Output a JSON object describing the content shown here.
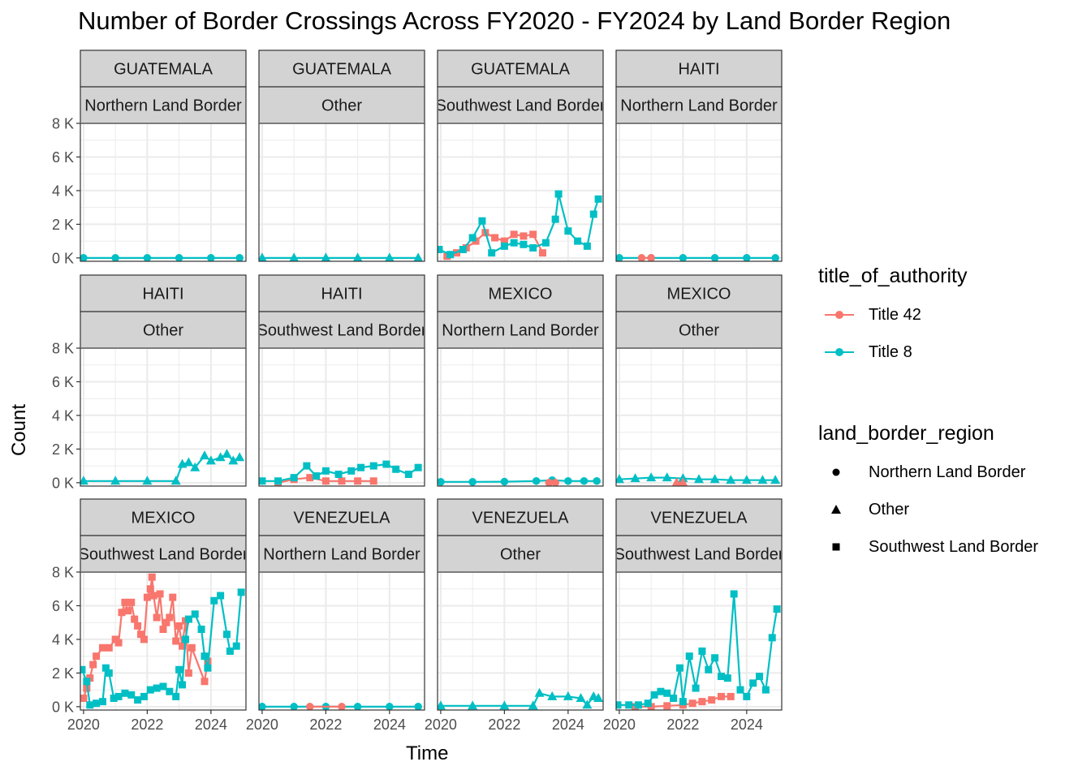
{
  "colors": {
    "title42": "#F8766D",
    "title8": "#00BFC4",
    "strip_bg": "#D3D3D3",
    "grid": "#EBEBEB",
    "border": "#333333"
  },
  "chart_data": {
    "type": "line",
    "title": "Number of Border Crossings Across FY2020 - FY2024 by Land Border Region",
    "xlabel": "Time",
    "ylabel": "Count",
    "xlim": [
      2019.9,
      2025.1
    ],
    "ylim": [
      -200,
      8000
    ],
    "x_ticks": [
      2020,
      2022,
      2024
    ],
    "x_tick_labels": [
      "2020",
      "2022",
      "2024"
    ],
    "y_ticks": [
      0,
      2000,
      4000,
      6000,
      8000
    ],
    "y_tick_labels": [
      "0 K",
      "2 K",
      "4 K",
      "6 K",
      "8 K"
    ],
    "grid": true,
    "legend": {
      "position": "right",
      "color_title": "title_of_authority",
      "color_entries": [
        "Title 42",
        "Title 8"
      ],
      "shape_title": "land_border_region",
      "shape_entries": [
        "Northern Land Border",
        "Other",
        "Southwest Land Border"
      ]
    },
    "panels": [
      {
        "country": "GUATEMALA",
        "region": "Northern Land Border",
        "shape": "circle",
        "series": [
          {
            "name": "Title 8",
            "x": [
              2020.0,
              2021.0,
              2022.0,
              2023.0,
              2024.0,
              2024.9
            ],
            "y": [
              0,
              0,
              0,
              0,
              0,
              0
            ]
          }
        ]
      },
      {
        "country": "GUATEMALA",
        "region": "Other",
        "shape": "triangle",
        "series": [
          {
            "name": "Title 8",
            "x": [
              2020.0,
              2021.0,
              2022.0,
              2023.0,
              2024.0,
              2024.9
            ],
            "y": [
              0,
              0,
              0,
              0,
              0,
              0
            ]
          }
        ]
      },
      {
        "country": "GUATEMALA",
        "region": "Southwest Land Border",
        "shape": "square",
        "series": [
          {
            "name": "Title 42",
            "x": [
              2020.2,
              2020.5,
              2020.8,
              2021.1,
              2021.4,
              2021.7,
              2022.0,
              2022.3,
              2022.6,
              2022.9,
              2023.2
            ],
            "y": [
              100,
              300,
              600,
              1000,
              1500,
              1200,
              1000,
              1400,
              1300,
              1400,
              300
            ]
          },
          {
            "name": "Title 8",
            "x": [
              2019.95,
              2020.3,
              2020.7,
              2021.0,
              2021.3,
              2021.6,
              2022.0,
              2022.3,
              2022.6,
              2022.9,
              2023.3,
              2023.6,
              2023.7,
              2024.0,
              2024.3,
              2024.6,
              2024.8,
              2024.95
            ],
            "y": [
              500,
              200,
              500,
              1200,
              2200,
              300,
              700,
              900,
              800,
              600,
              900,
              2300,
              3800,
              1600,
              1000,
              700,
              2600,
              3500
            ]
          }
        ]
      },
      {
        "country": "HAITI",
        "region": "Northern Land Border",
        "shape": "circle",
        "series": [
          {
            "name": "Title 8",
            "x": [
              2020.0,
              2021.0,
              2022.0,
              2023.0,
              2024.0,
              2024.9
            ],
            "y": [
              0,
              0,
              0,
              0,
              0,
              0
            ]
          },
          {
            "name": "Title 42",
            "x": [
              2020.7,
              2021.0
            ],
            "y": [
              0,
              0
            ]
          }
        ]
      },
      {
        "country": "HAITI",
        "region": "Other",
        "shape": "triangle",
        "series": [
          {
            "name": "Title 8",
            "x": [
              2020.0,
              2021.0,
              2022.0,
              2022.9,
              2023.1,
              2023.3,
              2023.5,
              2023.8,
              2024.0,
              2024.3,
              2024.5,
              2024.7,
              2024.9
            ],
            "y": [
              100,
              100,
              100,
              100,
              1100,
              1200,
              900,
              1600,
              1300,
              1500,
              1700,
              1300,
              1500
            ]
          }
        ]
      },
      {
        "country": "HAITI",
        "region": "Southwest Land Border",
        "shape": "square",
        "series": [
          {
            "name": "Title 42",
            "x": [
              2020.5,
              2021.0,
              2021.5,
              2022.0,
              2022.5,
              2023.0,
              2023.5
            ],
            "y": [
              0,
              200,
              300,
              100,
              100,
              100,
              100
            ]
          },
          {
            "name": "Title 8",
            "x": [
              2020.0,
              2020.5,
              2021.0,
              2021.4,
              2021.7,
              2022.0,
              2022.4,
              2022.8,
              2023.1,
              2023.5,
              2023.9,
              2024.2,
              2024.6,
              2024.9
            ],
            "y": [
              100,
              100,
              300,
              1000,
              400,
              700,
              500,
              700,
              900,
              1000,
              1100,
              800,
              500,
              900
            ]
          }
        ]
      },
      {
        "country": "MEXICO",
        "region": "Northern Land Border",
        "shape": "circle",
        "series": [
          {
            "name": "Title 8",
            "x": [
              2020.0,
              2021.0,
              2022.0,
              2023.0,
              2023.5,
              2024.0,
              2024.5,
              2024.9
            ],
            "y": [
              50,
              50,
              60,
              100,
              150,
              100,
              100,
              100
            ]
          },
          {
            "name": "Title 42",
            "x": [
              2023.4,
              2023.6
            ],
            "y": [
              0,
              0
            ]
          }
        ]
      },
      {
        "country": "MEXICO",
        "region": "Other",
        "shape": "triangle",
        "series": [
          {
            "name": "Title 8",
            "x": [
              2020.0,
              2020.5,
              2021.0,
              2021.5,
              2022.0,
              2022.5,
              2023.0,
              2023.5,
              2024.0,
              2024.5,
              2024.9
            ],
            "y": [
              200,
              250,
              300,
              300,
              250,
              200,
              200,
              150,
              150,
              150,
              150
            ]
          },
          {
            "name": "Title 42",
            "x": [
              2021.8,
              2022.0
            ],
            "y": [
              0,
              0
            ]
          }
        ]
      },
      {
        "country": "MEXICO",
        "region": "Southwest Land Border",
        "shape": "square",
        "series": [
          {
            "name": "Title 42",
            "x": [
              2020.0,
              2020.1,
              2020.2,
              2020.3,
              2020.4,
              2020.6,
              2020.8,
              2021.0,
              2021.1,
              2021.2,
              2021.3,
              2021.4,
              2021.5,
              2021.6,
              2021.7,
              2021.8,
              2021.9,
              2022.0,
              2022.1,
              2022.15,
              2022.2,
              2022.3,
              2022.4,
              2022.5,
              2022.6,
              2022.7,
              2022.8,
              2022.9,
              2023.0,
              2023.1,
              2023.2,
              2023.3,
              2023.4,
              2023.8,
              2023.9
            ],
            "y": [
              500,
              1100,
              1700,
              2500,
              3000,
              3500,
              3500,
              4000,
              3800,
              5600,
              6200,
              5700,
              6200,
              5200,
              4800,
              4300,
              4000,
              6500,
              7000,
              7700,
              6600,
              5300,
              6700,
              4600,
              5000,
              5300,
              6500,
              3900,
              4800,
              3600,
              5100,
              2000,
              3500,
              1500,
              2700
            ]
          },
          {
            "name": "Title 8",
            "x": [
              2019.95,
              2020.1,
              2020.2,
              2020.4,
              2020.6,
              2020.7,
              2020.8,
              2020.95,
              2021.1,
              2021.3,
              2021.5,
              2021.7,
              2021.9,
              2022.1,
              2022.3,
              2022.5,
              2022.7,
              2022.9,
              2023.0,
              2023.1,
              2023.2,
              2023.3,
              2023.5,
              2023.7,
              2023.8,
              2023.9,
              2024.1,
              2024.3,
              2024.5,
              2024.6,
              2024.8,
              2024.95
            ],
            "y": [
              2200,
              1500,
              100,
              200,
              300,
              2300,
              2000,
              500,
              600,
              800,
              700,
              400,
              600,
              1000,
              1100,
              1200,
              900,
              600,
              2200,
              1300,
              4000,
              5200,
              5500,
              4600,
              3000,
              2300,
              6300,
              6600,
              4300,
              3300,
              3600,
              6800
            ]
          }
        ]
      },
      {
        "country": "VENEZUELA",
        "region": "Northern Land Border",
        "shape": "circle",
        "series": [
          {
            "name": "Title 8",
            "x": [
              2020.0,
              2021.0,
              2022.0,
              2023.0,
              2024.0,
              2024.9
            ],
            "y": [
              0,
              0,
              0,
              0,
              0,
              0
            ]
          },
          {
            "name": "Title 42",
            "x": [
              2021.5,
              2022.5
            ],
            "y": [
              0,
              0
            ]
          }
        ]
      },
      {
        "country": "VENEZUELA",
        "region": "Other",
        "shape": "triangle",
        "series": [
          {
            "name": "Title 8",
            "x": [
              2020.0,
              2021.0,
              2022.0,
              2022.9,
              2023.1,
              2023.5,
              2024.0,
              2024.4,
              2024.6,
              2024.8,
              2024.95
            ],
            "y": [
              50,
              50,
              50,
              50,
              800,
              600,
              600,
              500,
              100,
              600,
              500
            ]
          }
        ]
      },
      {
        "country": "VENEZUELA",
        "region": "Southwest Land Border",
        "shape": "square",
        "series": [
          {
            "name": "Title 42",
            "x": [
              2020.5,
              2021.0,
              2021.5,
              2022.0,
              2022.3,
              2022.6,
              2022.9,
              2023.2,
              2023.5
            ],
            "y": [
              0,
              0,
              50,
              100,
              200,
              300,
              400,
              600,
              600
            ]
          },
          {
            "name": "Title 8",
            "x": [
              2019.95,
              2020.3,
              2020.6,
              2020.9,
              2021.1,
              2021.3,
              2021.5,
              2021.7,
              2021.9,
              2022.0,
              2022.2,
              2022.4,
              2022.6,
              2022.8,
              2023.0,
              2023.2,
              2023.4,
              2023.6,
              2023.8,
              2024.0,
              2024.2,
              2024.4,
              2024.6,
              2024.8,
              2024.95
            ],
            "y": [
              100,
              100,
              100,
              200,
              700,
              900,
              800,
              500,
              2300,
              300,
              3000,
              1100,
              3300,
              2200,
              2900,
              1800,
              1700,
              6700,
              1000,
              600,
              1400,
              1800,
              1000,
              4100,
              5800
            ]
          }
        ]
      }
    ]
  }
}
